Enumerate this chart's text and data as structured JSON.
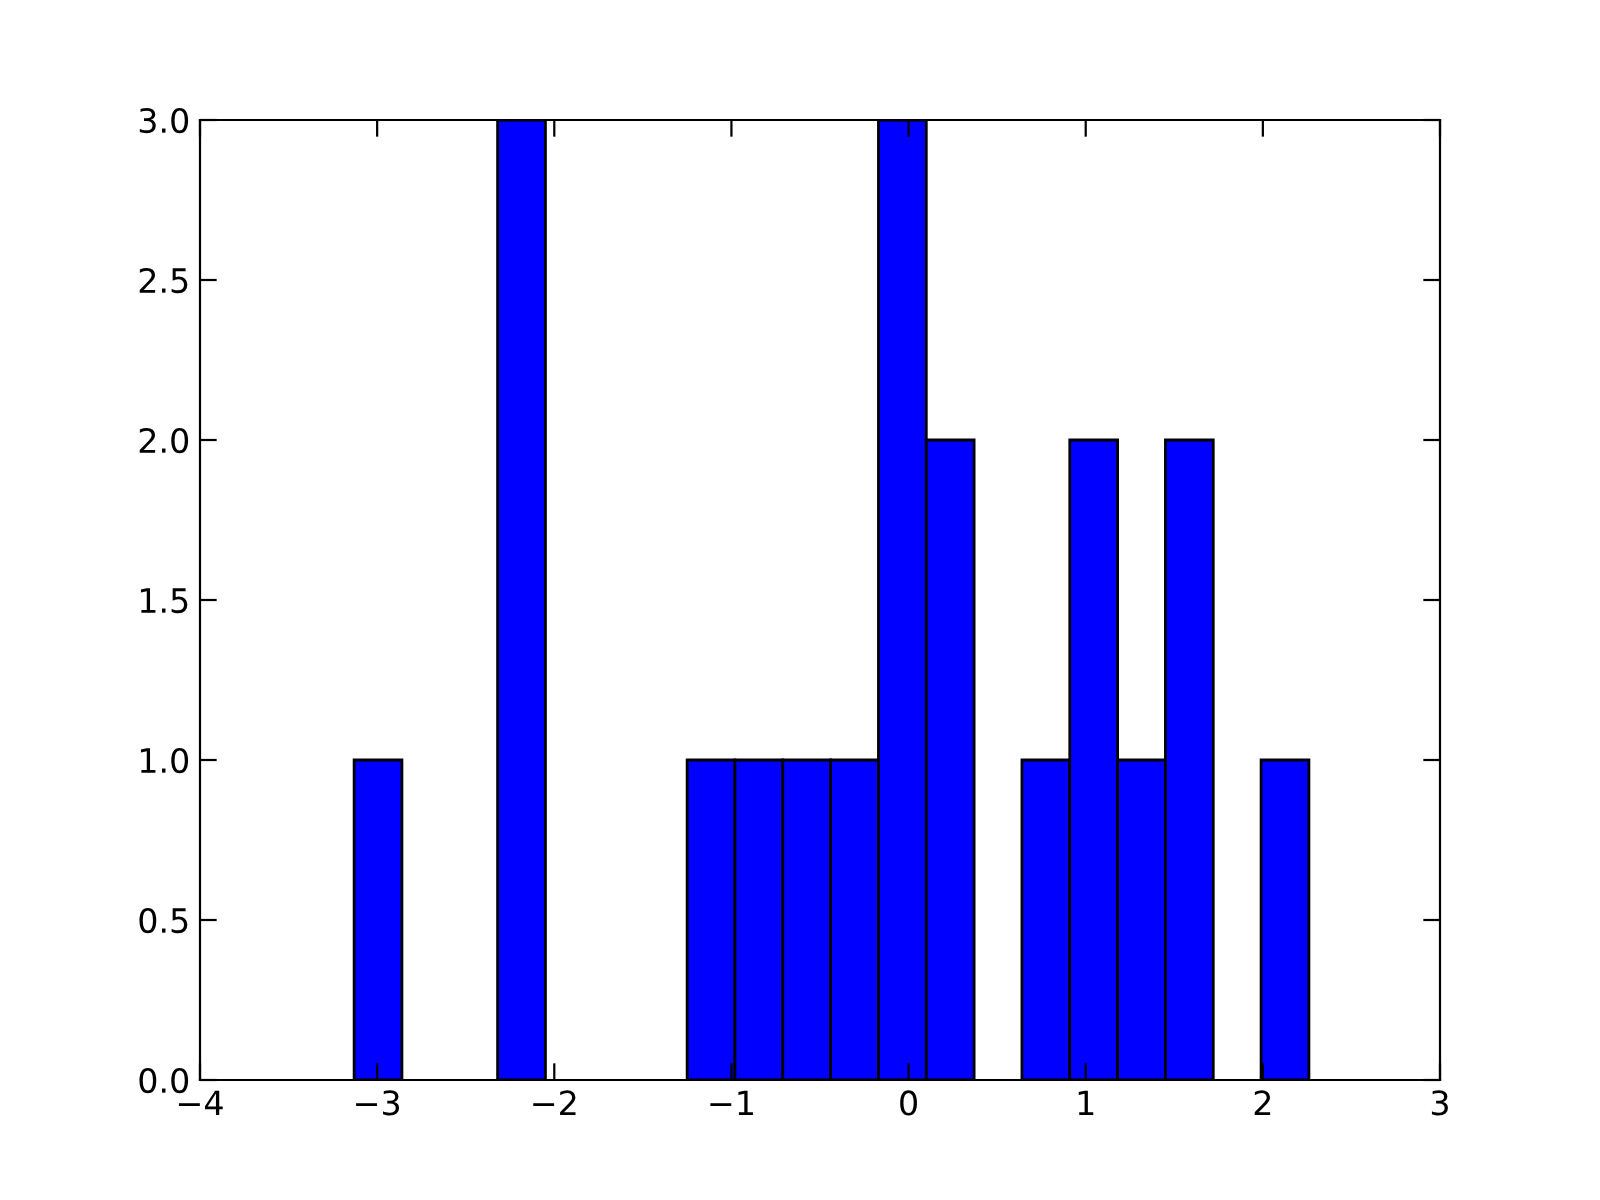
{
  "chart_data": {
    "type": "histogram",
    "bins": [
      -3.13,
      -2.86,
      -2.32,
      -2.05,
      -1.25,
      -0.98,
      -0.71,
      -0.44,
      -0.17,
      0.1,
      0.37,
      0.64,
      0.91,
      1.18,
      1.45,
      1.72,
      1.99,
      2.26
    ],
    "values": [
      1,
      0,
      3,
      0,
      1,
      1,
      1,
      1,
      3,
      2,
      0,
      1,
      2,
      1,
      2,
      0,
      1
    ],
    "color": "#0000ff",
    "xlim": [
      -4,
      3
    ],
    "xticks": [
      {
        "value": -4,
        "label": "−4"
      },
      {
        "value": -3,
        "label": "−3"
      },
      {
        "value": -2,
        "label": "−2"
      },
      {
        "value": -1,
        "label": "−1"
      },
      0,
      1,
      2,
      3
    ],
    "ylim": [
      0,
      3
    ],
    "yticks": [
      {
        "value": 0,
        "label": "0.0"
      },
      {
        "value": 0.5,
        "label": "0.5"
      },
      {
        "value": 1,
        "label": "1.0"
      },
      {
        "value": 1.5,
        "label": "1.5"
      },
      {
        "value": 2,
        "label": "2.0"
      },
      {
        "value": 2.5,
        "label": "2.5"
      },
      {
        "value": 3,
        "label": "3.0"
      }
    ],
    "grid": false
  }
}
